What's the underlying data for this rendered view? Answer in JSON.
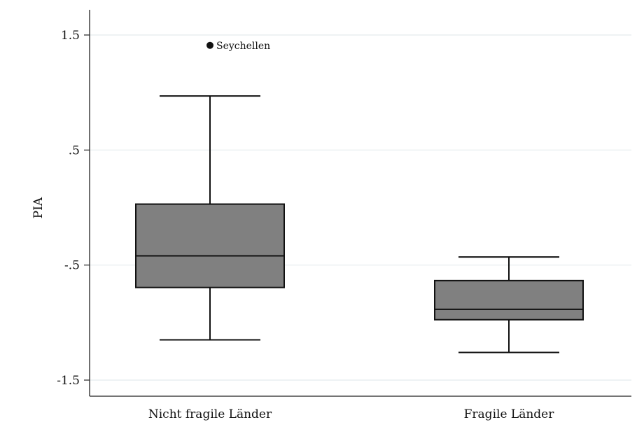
{
  "chart_data": {
    "type": "box",
    "ylabel": "PIA",
    "xlabel": "",
    "ylim": [
      -1.5,
      1.5
    ],
    "yticks": [
      1.5,
      0.5,
      -0.5,
      -1.5
    ],
    "ytick_labels": [
      "1.5",
      ".5",
      "-.5",
      "-1.5"
    ],
    "grid": true,
    "categories": [
      "Nicht fragile Länder",
      "Fragile Länder"
    ],
    "boxes": [
      {
        "category": "Nicht fragile Länder",
        "whisker_low": -1.15,
        "q1": -0.695,
        "median": -0.42,
        "q3": 0.03,
        "whisker_high": 0.97
      },
      {
        "category": "Fragile Länder",
        "whisker_low": -1.26,
        "q1": -0.975,
        "median": -0.885,
        "q3": -0.635,
        "whisker_high": -0.43
      }
    ],
    "outliers": [
      {
        "category": "Nicht fragile Länder",
        "value": 1.41,
        "label": "Seychellen"
      }
    ],
    "colors": {
      "box_fill": "#808080",
      "box_stroke": "#111111",
      "grid": "#e4ebee",
      "axis": "#222222"
    }
  }
}
